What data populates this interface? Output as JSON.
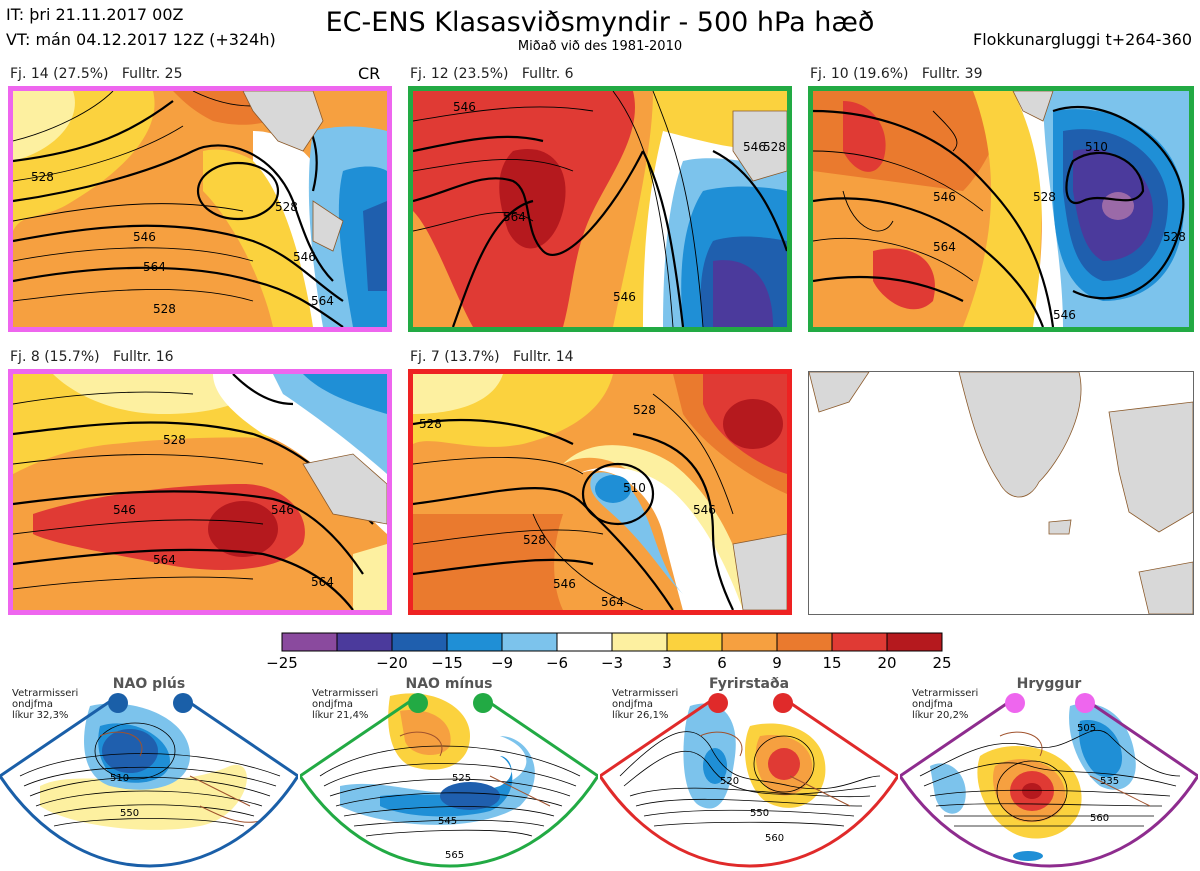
{
  "header": {
    "it": "IT: þri 21.11.2017 00Z",
    "vt": "VT: mán 04.12.2017 12Z  (+324h)",
    "title": "EC-ENS Klasasviðsmyndir - 500 hPa hæð",
    "subtitle": "Miðað við des 1981-2010",
    "window": "Flokkunargluggi t+264-360"
  },
  "clusters": [
    {
      "label": "Fj. 14 (27.5%)",
      "rep": "Fulltr. 25",
      "flag": "CR",
      "frame_color": "#ee66ee"
    },
    {
      "label": "Fj. 12 (23.5%)",
      "rep": "Fulltr. 6",
      "flag": "",
      "frame_color": "#22aa44"
    },
    {
      "label": "Fj. 10 (19.6%)",
      "rep": "Fulltr. 39",
      "flag": "",
      "frame_color": "#22aa44"
    },
    {
      "label": "Fj. 8 (15.7%)",
      "rep": "Fulltr. 16",
      "flag": "",
      "frame_color": "#ee66ee"
    },
    {
      "label": "Fj. 7 (13.7%)",
      "rep": "Fulltr. 14",
      "flag": "",
      "frame_color": "#ee2222"
    }
  ],
  "contour_labels": {
    "p1": [
      "528",
      "546",
      "564",
      "546",
      "528",
      "564",
      "528"
    ],
    "p2": [
      "546",
      "564",
      "546",
      "528",
      "546"
    ],
    "p3": [
      "546",
      "528",
      "564",
      "546",
      "510",
      "528"
    ],
    "p4": [
      "528",
      "546",
      "564",
      "546",
      "564"
    ],
    "p5": [
      "528",
      "510",
      "528",
      "546",
      "528",
      "546",
      "564"
    ]
  },
  "colorbar": {
    "colors": [
      "#8a4a9e",
      "#4b3a9c",
      "#1f5fae",
      "#1f8fd6",
      "#7cc3ec",
      "#ffffff",
      "#fdf0a0",
      "#fbd23e",
      "#f6a040",
      "#ea7a2e",
      "#e03a34",
      "#b5191e"
    ],
    "ticks": [
      "−25",
      "−20",
      "−15",
      "−9",
      "−6",
      "−3",
      "3",
      "6",
      "9",
      "15",
      "20",
      "25"
    ]
  },
  "regimes": [
    {
      "name": "NAO plús",
      "line1": "Vetrarmisseri",
      "line2": "ondjfma",
      "line3": "líkur 32,3%",
      "color": "#1a5fa8",
      "labels": [
        "510",
        "550"
      ]
    },
    {
      "name": "NAO mínus",
      "line1": "Vetrarmisseri",
      "line2": "ondjfma",
      "line3": "líkur 21,4%",
      "color": "#22aa44",
      "labels": [
        "525",
        "545",
        "565"
      ]
    },
    {
      "name": "Fyrirstaða",
      "line1": "Vetrarmisseri",
      "line2": "ondjfma",
      "line3": "líkur 26,1%",
      "color": "#e02a2a",
      "labels": [
        "520",
        "550",
        "560"
      ]
    },
    {
      "name": "Hryggur",
      "line1": "Vetrarmisseri",
      "line2": "ondjfma",
      "line3": "líkur 20,2%",
      "color": "#ee66ee",
      "labels": [
        "505",
        "535",
        "560"
      ]
    }
  ]
}
